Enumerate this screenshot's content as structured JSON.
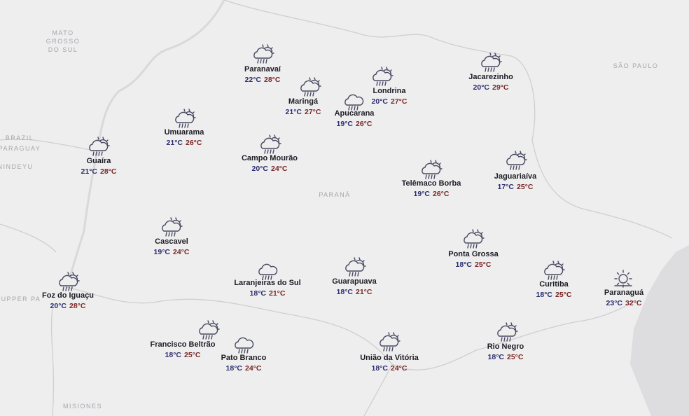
{
  "map_labels": {
    "mato": "MATO",
    "grosso": "GROSSO",
    "do_sul": "DO SUL",
    "sao_paulo": "SÃO PAULO",
    "parana": "PARANÁ",
    "brazil": "BRAZIL",
    "paraguay": "PARAGUAY",
    "nindeyu": "NINDEYU",
    "upper": "UPPER PA",
    "misiones": "MISIONES"
  },
  "cities": [
    {
      "name": "Paranavaí",
      "min": "22°C",
      "max": "28°C"
    },
    {
      "name": "Maringá",
      "min": "21°C",
      "max": "27°C"
    },
    {
      "name": "Londrina",
      "min": "20°C",
      "max": "27°C"
    },
    {
      "name": "Apucarana",
      "min": "19°C",
      "max": "26°C"
    },
    {
      "name": "Jacarezinho",
      "min": "20°C",
      "max": "29°C"
    },
    {
      "name": "Umuarama",
      "min": "21°C",
      "max": "26°C"
    },
    {
      "name": "Guaíra",
      "min": "21°C",
      "max": "28°C"
    },
    {
      "name": "Campo Mourão",
      "min": "20°C",
      "max": "24°C"
    },
    {
      "name": "Telêmaco Borba",
      "min": "19°C",
      "max": "26°C"
    },
    {
      "name": "Jaguariaíva",
      "min": "17°C",
      "max": "25°C"
    },
    {
      "name": "Cascavel",
      "min": "19°C",
      "max": "24°C"
    },
    {
      "name": "Ponta Grossa",
      "min": "18°C",
      "max": "25°C"
    },
    {
      "name": "Foz do Iguaçu",
      "min": "20°C",
      "max": "28°C"
    },
    {
      "name": "Laranjeiras do Sul",
      "min": "18°C",
      "max": "21°C"
    },
    {
      "name": "Guarapuava",
      "min": "18°C",
      "max": "21°C"
    },
    {
      "name": "Curitiba",
      "min": "18°C",
      "max": "25°C"
    },
    {
      "name": "Paranaguá",
      "min": "23°C",
      "max": "32°C"
    },
    {
      "name": "Francisco Beltrão",
      "min": "18°C",
      "max": "25°C"
    },
    {
      "name": "Pato Branco",
      "min": "18°C",
      "max": "24°C"
    },
    {
      "name": "União da Vitória",
      "min": "18°C",
      "max": "24°C"
    },
    {
      "name": "Rio Negro",
      "min": "18°C",
      "max": "25°C"
    }
  ]
}
